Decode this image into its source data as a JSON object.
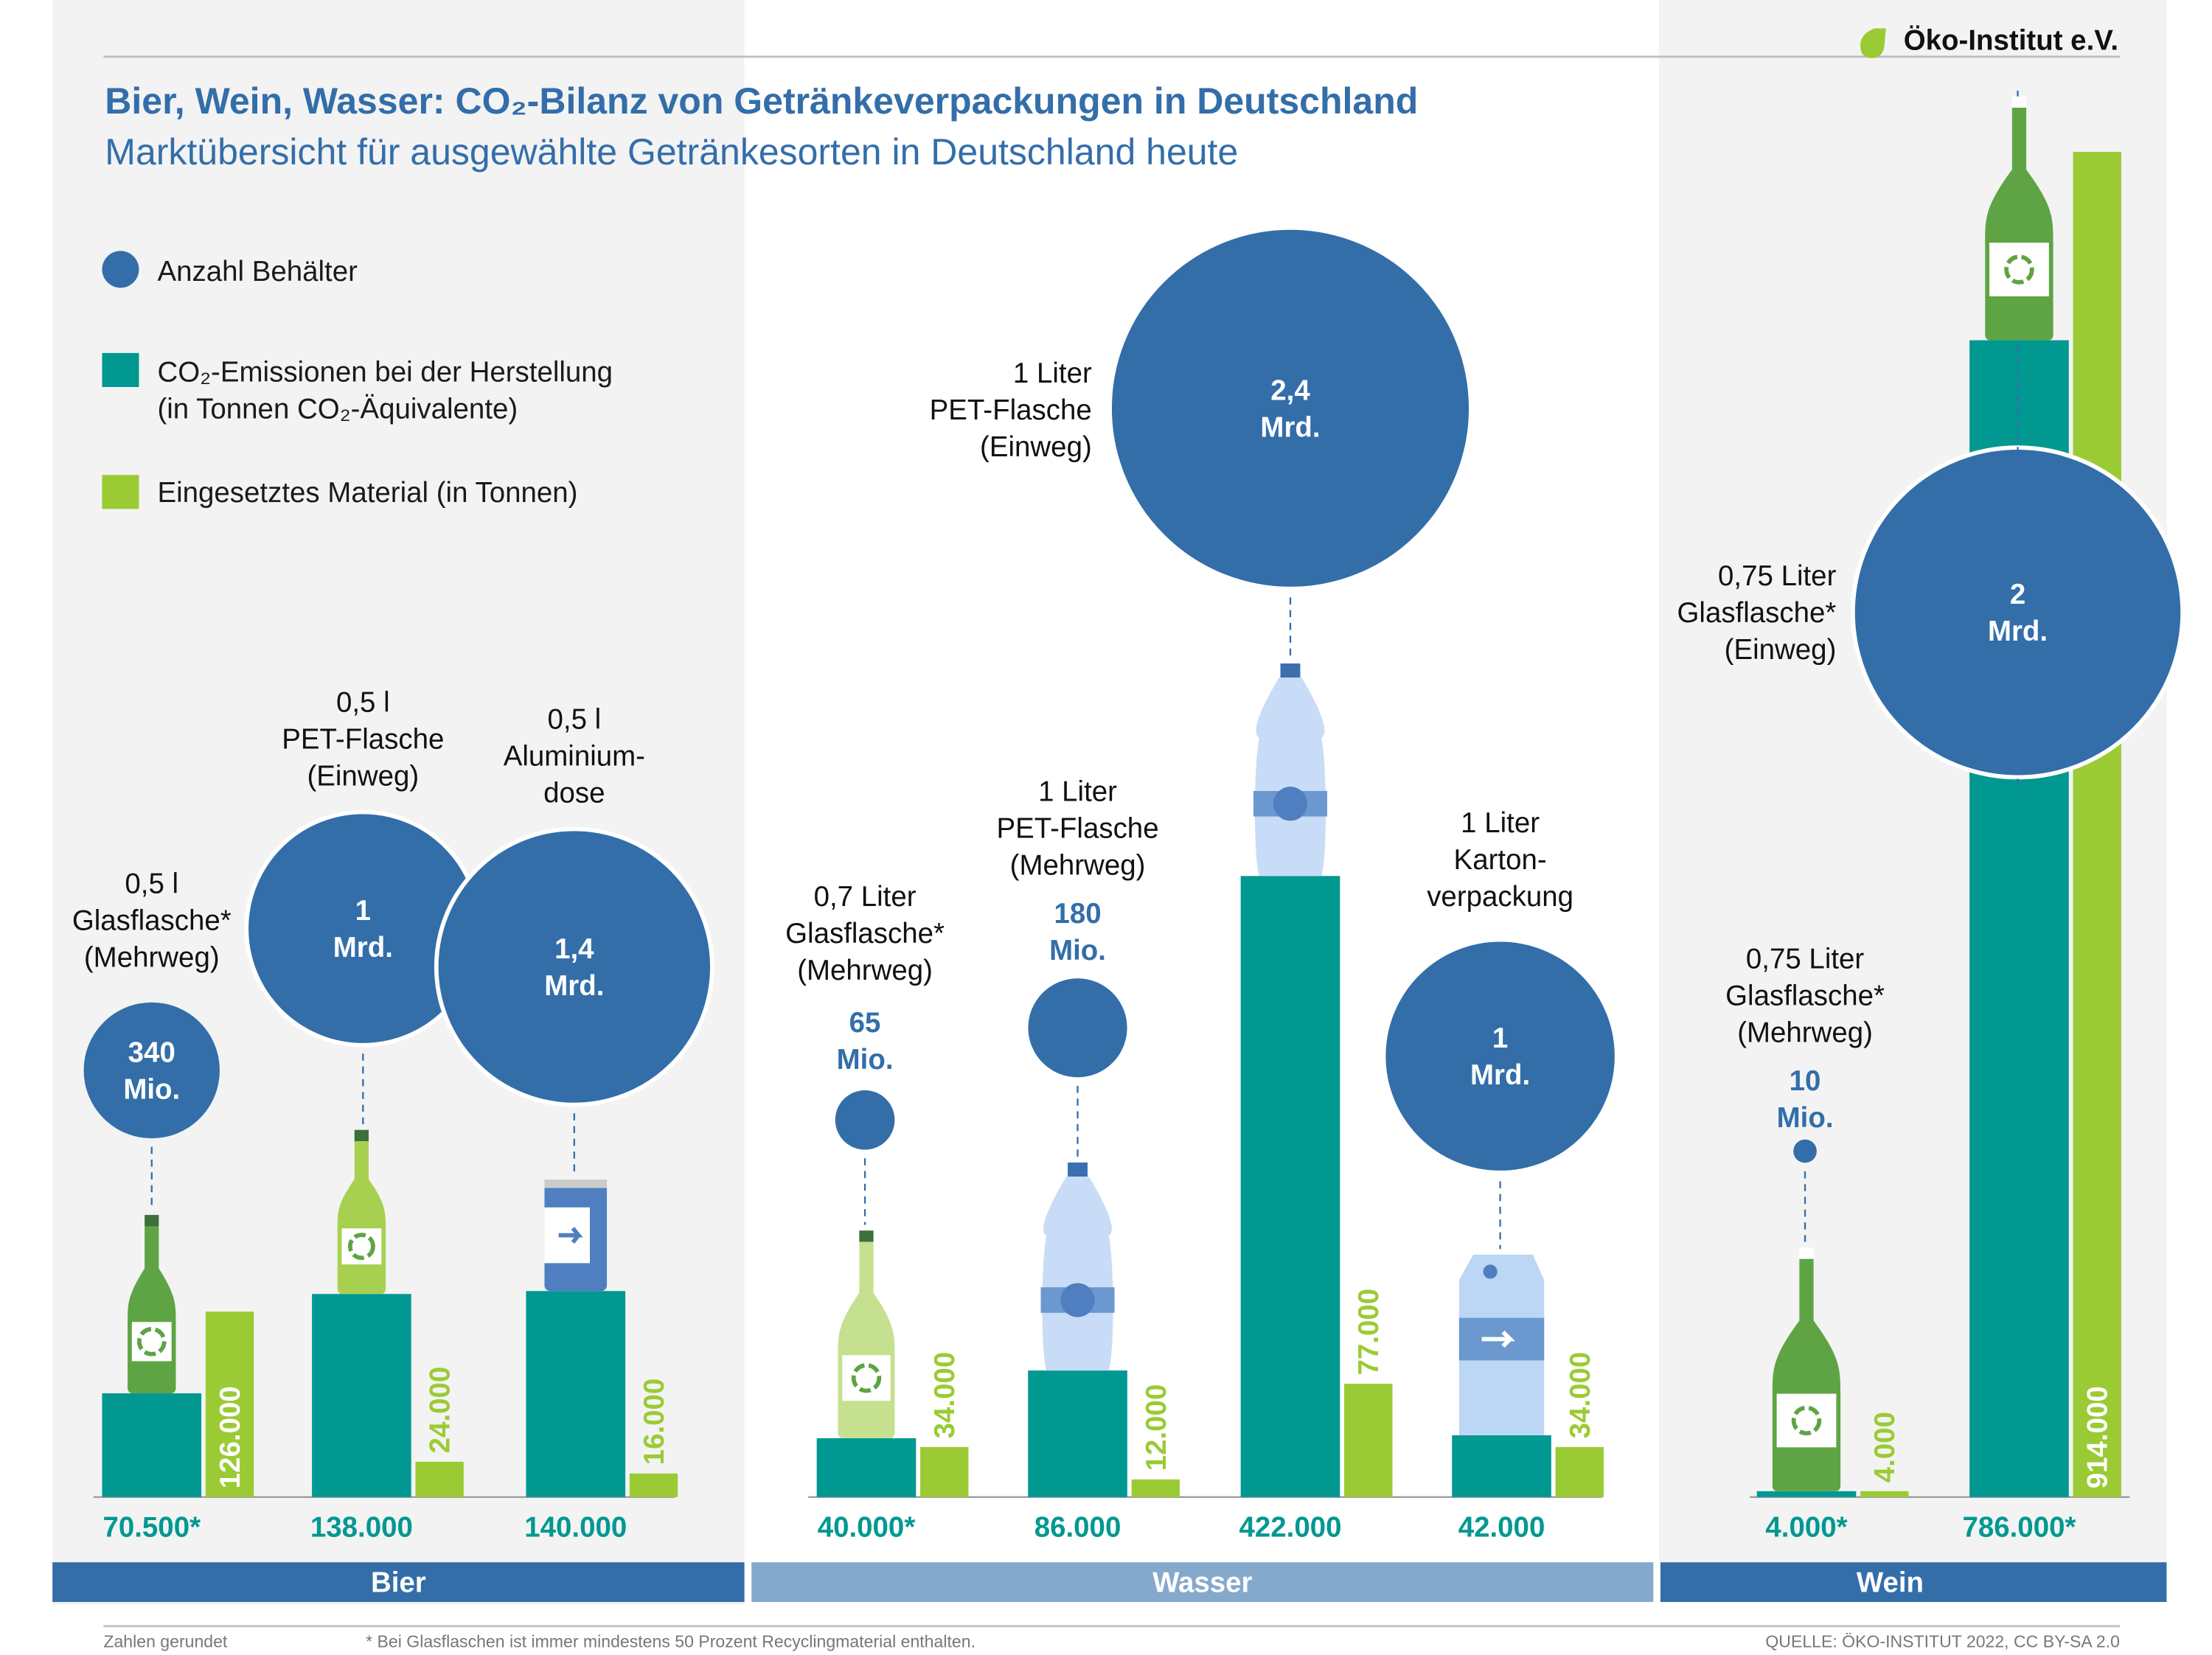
{
  "header": {
    "title": "Bier, Wein, Wasser: CO₂-Bilanz von Getränkeverpackungen in Deutschland",
    "subtitle": "Marktübersicht für ausgewählte Getränkesorten in Deutschland heute",
    "logo_text": "Öko-Institut e.V."
  },
  "colors": {
    "blue": "#336ea9",
    "light_blue": "#85a9cd",
    "teal": "#009891",
    "lime": "#9acb34",
    "panel_gray": "#f3f3f3"
  },
  "legend": {
    "containers": "Anzahl Behälter",
    "co2_line1": "CO₂-Emissionen bei der Herstellung",
    "co2_line2": "(in Tonnen CO₂-Äquivalente)",
    "material": "Eingesetztes Material (in Tonnen)"
  },
  "footer": {
    "note_rounded": "Zahlen gerundet",
    "note_glass": "* Bei Glasflaschen ist immer mindestens 50 Prozent Recyclingmaterial enthalten.",
    "source": "QUELLE: ÖKO-INSTITUT 2022, CC BY-SA 2.0"
  },
  "chart_data": {
    "type": "bar",
    "title": "Bier, Wein, Wasser: CO₂-Bilanz von Getränkeverpackungen in Deutschland",
    "subtitle": "Marktübersicht für ausgewählte Getränkesorten in Deutschland heute",
    "series": [
      {
        "name": "Anzahl Behälter",
        "unit": "Mio. Stück",
        "mark": "circle"
      },
      {
        "name": "CO₂-Emissionen bei der Herstellung (in Tonnen CO₂-Äquivalente)",
        "mark": "bar"
      },
      {
        "name": "Eingesetztes Material (in Tonnen)",
        "mark": "bar"
      }
    ],
    "categories": [
      "Bier",
      "Wasser",
      "Wein"
    ],
    "items": [
      {
        "group": "Bier",
        "label": [
          "0,5 l",
          "Glasflasche*",
          "(Mehrweg)"
        ],
        "icon": "glass-beer-bottle-icon",
        "containers_mio": 340,
        "containers_label": [
          "340",
          "Mio."
        ],
        "co2": 70500,
        "co2_label": "70.500*",
        "material": 126000,
        "material_label": "126.000"
      },
      {
        "group": "Bier",
        "label": [
          "0,5 l",
          "PET-Flasche",
          "(Einweg)"
        ],
        "icon": "pet-beer-bottle-icon",
        "containers_mio": 1000,
        "containers_label": [
          "1",
          "Mrd."
        ],
        "co2": 138000,
        "co2_label": "138.000",
        "material": 24000,
        "material_label": "24.000"
      },
      {
        "group": "Bier",
        "label": [
          "0,5 l",
          "Aluminium-",
          "dose"
        ],
        "icon": "aluminium-can-icon",
        "containers_mio": 1400,
        "containers_label": [
          "1,4",
          "Mrd."
        ],
        "co2": 140000,
        "co2_label": "140.000",
        "material": 16000,
        "material_label": "16.000"
      },
      {
        "group": "Wasser",
        "label": [
          "0,7 Liter",
          "Glasflasche*",
          "(Mehrweg)"
        ],
        "icon": "glass-water-bottle-icon",
        "containers_mio": 65,
        "containers_label": [
          "65",
          "Mio."
        ],
        "co2": 40000,
        "co2_label": "40.000*",
        "material": 34000,
        "material_label": "34.000"
      },
      {
        "group": "Wasser",
        "label": [
          "1 Liter",
          "PET-Flasche",
          "(Mehrweg)"
        ],
        "icon": "pet-reusable-bottle-icon",
        "containers_mio": 180,
        "containers_label": [
          "180",
          "Mio."
        ],
        "co2": 86000,
        "co2_label": "86.000",
        "material": 12000,
        "material_label": "12.000"
      },
      {
        "group": "Wasser",
        "label": [
          "1 Liter",
          "PET-Flasche",
          "(Einweg)"
        ],
        "icon": "pet-oneway-bottle-icon",
        "containers_mio": 2400,
        "containers_label": [
          "2,4",
          "Mrd."
        ],
        "co2": 422000,
        "co2_label": "422.000",
        "material": 77000,
        "material_label": "77.000"
      },
      {
        "group": "Wasser",
        "label": [
          "1 Liter",
          "Karton-",
          "verpackung"
        ],
        "icon": "carton-icon",
        "containers_mio": 1000,
        "containers_label": [
          "1",
          "Mrd."
        ],
        "co2": 42000,
        "co2_label": "42.000",
        "material": 34000,
        "material_label": "34.000"
      },
      {
        "group": "Wein",
        "label": [
          "0,75 Liter",
          "Glasflasche*",
          "(Mehrweg)"
        ],
        "icon": "wine-reusable-bottle-icon",
        "containers_mio": 10,
        "containers_label": [
          "10",
          "Mio."
        ],
        "co2": 4000,
        "co2_label": "4.000*",
        "material": 4000,
        "material_label": "4.000"
      },
      {
        "group": "Wein",
        "label": [
          "0,75 Liter",
          "Glasflasche*",
          "(Einweg)"
        ],
        "icon": "wine-oneway-bottle-icon",
        "containers_mio": 2000,
        "containers_label": [
          "2",
          "Mrd."
        ],
        "co2": 786000,
        "co2_label": "786.000*",
        "material": 914000,
        "material_label": "914.000"
      }
    ],
    "ylim": [
      0,
      1000000
    ],
    "grid": false,
    "legend_position": "top-left"
  }
}
